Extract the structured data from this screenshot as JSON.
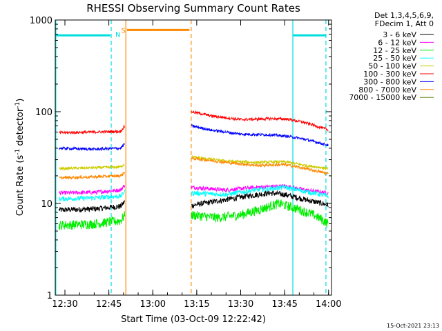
{
  "chart_data": {
    "type": "line",
    "title": "RHESSI Observing Summary Count Rates",
    "xlabel": "Start Time (03-Oct-09 12:22:42)",
    "ylabel_main": "Count Rate (s",
    "ylabel_sup": "-1",
    "ylabel_rest": " detector",
    "ylabel_sup2": "-1",
    "ylabel_end": ")",
    "y_scale": "log",
    "ylim": [
      1,
      1000
    ],
    "xlim_minutes_after_1220": [
      6.7,
      101
    ],
    "x_ticks": [
      {
        "minute": 10,
        "label": "12:30"
      },
      {
        "minute": 25,
        "label": "12:45"
      },
      {
        "minute": 40,
        "label": "13:00"
      },
      {
        "minute": 55,
        "label": "13:15"
      },
      {
        "minute": 70,
        "label": "13:30"
      },
      {
        "minute": 85,
        "label": "13:45"
      },
      {
        "minute": 100,
        "label": "14:00"
      }
    ],
    "y_ticks": [
      {
        "value": 1,
        "label": "1"
      },
      {
        "value": 10,
        "label": "10"
      },
      {
        "value": 100,
        "label": "100"
      },
      {
        "value": 1000,
        "label": "1000"
      }
    ],
    "legend_placement": "top-right outside",
    "legend_header": [
      "Det 1,3,4,5,6,9,",
      "FDecim 1, Att 0"
    ],
    "footer_date": "15-Oct-2021 23:13",
    "data_gap_minutes": [
      30.7,
      53.0
    ],
    "series": [
      {
        "name": "3 - 6 keV",
        "color": "#000000",
        "values_before_gap": [
          [
            8,
            8.5
          ],
          [
            20,
            8.7
          ],
          [
            29,
            9.3
          ],
          [
            30.5,
            10.5
          ]
        ],
        "values_after_gap": [
          [
            53.2,
            9.5
          ],
          [
            65,
            11
          ],
          [
            72,
            12
          ],
          [
            80,
            13
          ],
          [
            85,
            12.5
          ],
          [
            92,
            11
          ],
          [
            100,
            9.6
          ]
        ]
      },
      {
        "name": "6 - 12 keV",
        "color": "#ff00ff",
        "values_before_gap": [
          [
            8,
            13
          ],
          [
            20,
            13.2
          ],
          [
            29,
            14
          ],
          [
            30.5,
            16
          ]
        ],
        "values_after_gap": [
          [
            53.2,
            15
          ],
          [
            65,
            14
          ],
          [
            75,
            15
          ],
          [
            85,
            15.5
          ],
          [
            92,
            14
          ],
          [
            100,
            13
          ]
        ]
      },
      {
        "name": "12 - 25 keV",
        "color": "#00ee00",
        "values_before_gap": [
          [
            8,
            5.8
          ],
          [
            20,
            6
          ],
          [
            29,
            6.5
          ],
          [
            30.5,
            7.5
          ]
        ],
        "values_after_gap": [
          [
            53.2,
            7.5
          ],
          [
            62,
            7
          ],
          [
            70,
            7.5
          ],
          [
            76,
            8.5
          ],
          [
            83,
            10
          ],
          [
            88,
            9
          ],
          [
            95,
            7.5
          ],
          [
            100,
            6
          ]
        ]
      },
      {
        "name": "25 - 50 keV",
        "color": "#00ffff",
        "values_before_gap": [
          [
            8,
            11.2
          ],
          [
            20,
            11.5
          ],
          [
            29,
            12
          ],
          [
            30.5,
            13.5
          ]
        ],
        "values_after_gap": [
          [
            53.2,
            13
          ],
          [
            65,
            12.5
          ],
          [
            75,
            14
          ],
          [
            85,
            15
          ],
          [
            92,
            13.5
          ],
          [
            100,
            12
          ]
        ]
      },
      {
        "name": "50 - 100 keV",
        "color": "#cccc00",
        "values_before_gap": [
          [
            8,
            24
          ],
          [
            20,
            24.5
          ],
          [
            29,
            25
          ],
          [
            30.5,
            27
          ]
        ],
        "values_after_gap": [
          [
            53.2,
            32
          ],
          [
            65,
            29
          ],
          [
            75,
            28
          ],
          [
            85,
            28.5
          ],
          [
            92,
            26
          ],
          [
            100,
            24
          ]
        ]
      },
      {
        "name": "100 - 300 keV",
        "color": "#ff0000",
        "values_before_gap": [
          [
            8,
            59
          ],
          [
            20,
            60
          ],
          [
            29,
            61
          ],
          [
            30.5,
            70
          ]
        ],
        "values_after_gap": [
          [
            53.2,
            100
          ],
          [
            60,
            90
          ],
          [
            70,
            82
          ],
          [
            80,
            84
          ],
          [
            86,
            83
          ],
          [
            92,
            76
          ],
          [
            100,
            63
          ]
        ]
      },
      {
        "name": "300 - 800 keV",
        "color": "#0000ff",
        "values_before_gap": [
          [
            8,
            40
          ],
          [
            20,
            39
          ],
          [
            29,
            40
          ],
          [
            30.5,
            45
          ]
        ],
        "values_after_gap": [
          [
            53.2,
            70
          ],
          [
            60,
            63
          ],
          [
            70,
            57
          ],
          [
            80,
            56
          ],
          [
            86,
            54
          ],
          [
            92,
            50
          ],
          [
            100,
            43
          ]
        ]
      },
      {
        "name": "800 - 7000 keV",
        "color": "#ff8800",
        "values_before_gap": [
          [
            8,
            19
          ],
          [
            20,
            19.5
          ],
          [
            29,
            20
          ],
          [
            30.5,
            22
          ]
        ],
        "values_after_gap": [
          [
            53.2,
            31
          ],
          [
            65,
            28
          ],
          [
            75,
            26
          ],
          [
            85,
            26.5
          ],
          [
            92,
            24
          ],
          [
            100,
            21
          ]
        ]
      },
      {
        "name": "7000 - 15000 keV",
        "color": "#6b8e23",
        "values_before_gap": [],
        "values_after_gap": []
      }
    ],
    "annotations": [
      {
        "label": "N",
        "color": "#00dddd",
        "label_minute": 26.5,
        "value": 700
      },
      {
        "label": "S",
        "color": "#ff8800",
        "label_minute": 28.5,
        "value": 780
      }
    ],
    "time_markers": [
      {
        "minute": 6.9,
        "color": "#00dddd",
        "style": "solid"
      },
      {
        "minute": 25.8,
        "color": "#00dddd",
        "style": "dashed"
      },
      {
        "minute": 30.8,
        "color": "#ff8800",
        "style": "solid"
      },
      {
        "minute": 53.1,
        "color": "#ff8800",
        "style": "dashed"
      },
      {
        "minute": 87.8,
        "color": "#00dddd",
        "style": "solid"
      },
      {
        "minute": 99.1,
        "color": "#00dddd",
        "style": "dashed"
      }
    ],
    "bars": [
      {
        "color": "#00dddd",
        "from_minute": 6.9,
        "to_minute": 25.5,
        "value": 680
      },
      {
        "color": "#ff8800",
        "from_minute": 31.2,
        "to_minute": 52.5,
        "value": 780
      },
      {
        "color": "#00dddd",
        "from_minute": 87.8,
        "to_minute": 99.0,
        "value": 680
      }
    ]
  }
}
